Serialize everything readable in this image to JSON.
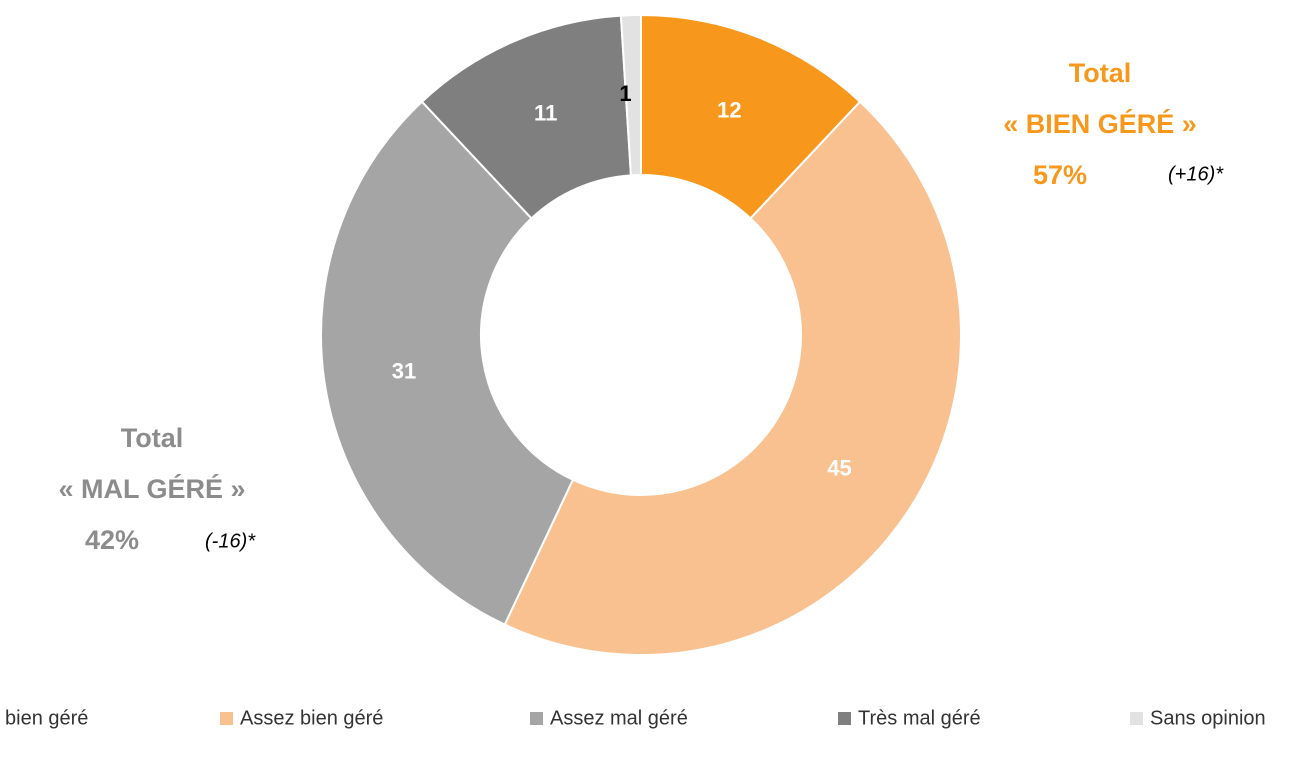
{
  "chart_data": {
    "type": "donut",
    "categories": [
      "bien géré",
      "Assez bien géré",
      "Assez mal géré",
      "Très mal géré",
      "Sans opinion"
    ],
    "values": [
      12,
      45,
      31,
      11,
      1
    ],
    "colors": [
      "#F7981D",
      "#F9C190",
      "#A5A5A5",
      "#7F7F7F",
      "#E2E2E2"
    ],
    "label_colors": [
      "#FFFFFF",
      "#FFFFFF",
      "#FFFFFF",
      "#FFFFFF",
      "#000000"
    ],
    "annotations": [
      {
        "lines": [
          "Total",
          "« BIEN GÉRÉ »",
          "57%"
        ],
        "note": "(+16)*",
        "color": "#F7981D"
      },
      {
        "lines": [
          "Total",
          "« MAL GÉRÉ »",
          "42%"
        ],
        "note": "(-16)*",
        "color": "#8C8C8C"
      }
    ],
    "legend": "bottom"
  }
}
